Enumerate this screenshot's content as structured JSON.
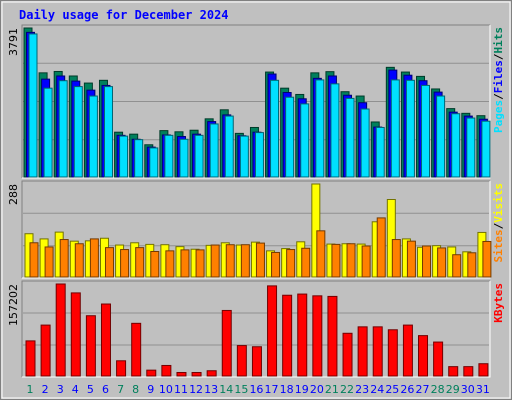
{
  "chart_data": [
    {
      "type": "bar",
      "title": "Daily usage for December 2024",
      "panel": "hits-files-pages",
      "ymax_label": "3791",
      "ylim": [
        0,
        3791
      ],
      "right_label_parts": [
        "Pages",
        "Files",
        "Hits"
      ],
      "grid": true,
      "categories": [
        "1",
        "2",
        "3",
        "4",
        "5",
        "6",
        "7",
        "8",
        "9",
        "10",
        "11",
        "12",
        "13",
        "14",
        "15",
        "16",
        "17",
        "18",
        "19",
        "20",
        "21",
        "22",
        "23",
        "24",
        "25",
        "26",
        "27",
        "28",
        "29",
        "30",
        "31"
      ],
      "weekend_days": [
        "1",
        "7",
        "8",
        "14",
        "15",
        "21",
        "22",
        "28",
        "29"
      ],
      "series": [
        {
          "name": "Hits",
          "color": "#00805c",
          "values": [
            3791,
            2650,
            2685,
            2570,
            2390,
            2460,
            1140,
            1090,
            820,
            1180,
            1150,
            1190,
            1480,
            1710,
            1110,
            1260,
            2670,
            2260,
            2100,
            2650,
            2680,
            2170,
            2060,
            1400,
            2790,
            2670,
            2560,
            2240,
            1740,
            1620,
            1560
          ]
        },
        {
          "name": "Files",
          "color": "#0000ff",
          "values": [
            3680,
            2490,
            2570,
            2440,
            2210,
            2330,
            1060,
            960,
            760,
            1070,
            1030,
            1090,
            1410,
            1580,
            1050,
            1140,
            2620,
            2150,
            1990,
            2510,
            2570,
            2080,
            1890,
            1270,
            2720,
            2590,
            2450,
            2160,
            1650,
            1550,
            1470
          ]
        },
        {
          "name": "Pages",
          "color": "#00e0ff",
          "values": [
            3640,
            2260,
            2450,
            2300,
            2060,
            2300,
            1040,
            950,
            740,
            1060,
            960,
            1060,
            1350,
            1550,
            1040,
            1130,
            2460,
            2030,
            1860,
            2470,
            2370,
            2000,
            1730,
            1260,
            2470,
            2460,
            2330,
            2060,
            1610,
            1500,
            1420
          ]
        }
      ]
    },
    {
      "type": "bar",
      "panel": "visits-sites",
      "ymax_label": "288",
      "ylim": [
        0,
        288
      ],
      "right_label_parts": [
        "Sites",
        "Visits"
      ],
      "grid": true,
      "categories": [
        "1",
        "2",
        "3",
        "4",
        "5",
        "6",
        "7",
        "8",
        "9",
        "10",
        "11",
        "12",
        "13",
        "14",
        "15",
        "16",
        "17",
        "18",
        "19",
        "20",
        "21",
        "22",
        "23",
        "24",
        "25",
        "26",
        "27",
        "28",
        "29",
        "30",
        "31"
      ],
      "series": [
        {
          "name": "Visits",
          "color": "#ffff00",
          "values": [
            134,
            118,
            139,
            111,
            112,
            120,
            99,
            106,
            101,
            100,
            94,
            86,
            98,
            106,
            99,
            108,
            81,
            88,
            109,
            288,
            102,
            103,
            102,
            171,
            240,
            118,
            92,
            97,
            93,
            78,
            138
          ]
        },
        {
          "name": "Sites",
          "color": "#ff8000",
          "values": [
            106,
            93,
            116,
            103,
            118,
            91,
            85,
            91,
            79,
            81,
            84,
            84,
            99,
            100,
            100,
            105,
            76,
            85,
            89,
            143,
            101,
            103,
            96,
            183,
            116,
            111,
            96,
            90,
            69,
            75,
            110
          ]
        }
      ]
    },
    {
      "type": "bar",
      "panel": "kbytes",
      "ymax_label": "157202",
      "ylim": [
        0,
        157202
      ],
      "right_label_parts": [
        "KBytes"
      ],
      "grid": true,
      "categories": [
        "1",
        "2",
        "3",
        "4",
        "5",
        "6",
        "7",
        "8",
        "9",
        "10",
        "11",
        "12",
        "13",
        "14",
        "15",
        "16",
        "17",
        "18",
        "19",
        "20",
        "21",
        "22",
        "23",
        "24",
        "25",
        "26",
        "27",
        "28",
        "29",
        "30",
        "31"
      ],
      "series": [
        {
          "name": "KBytes",
          "color": "#ff0000",
          "values": [
            60000,
            87000,
            157202,
            142000,
            103000,
            123000,
            26000,
            90000,
            10000,
            18000,
            6000,
            6000,
            9000,
            112000,
            52000,
            50000,
            154000,
            138000,
            140000,
            137000,
            136000,
            73000,
            84000,
            84000,
            79000,
            87000,
            69000,
            58000,
            16000,
            16000,
            21000
          ]
        }
      ]
    }
  ],
  "colors": {
    "title": "#0000ff",
    "panel_bg": "#c0c0c0",
    "frame": "#909090",
    "weekday_label": "#0000ff",
    "weekend_label": "#00805c",
    "axis_text": "#000000",
    "label_separator": "#000000"
  }
}
